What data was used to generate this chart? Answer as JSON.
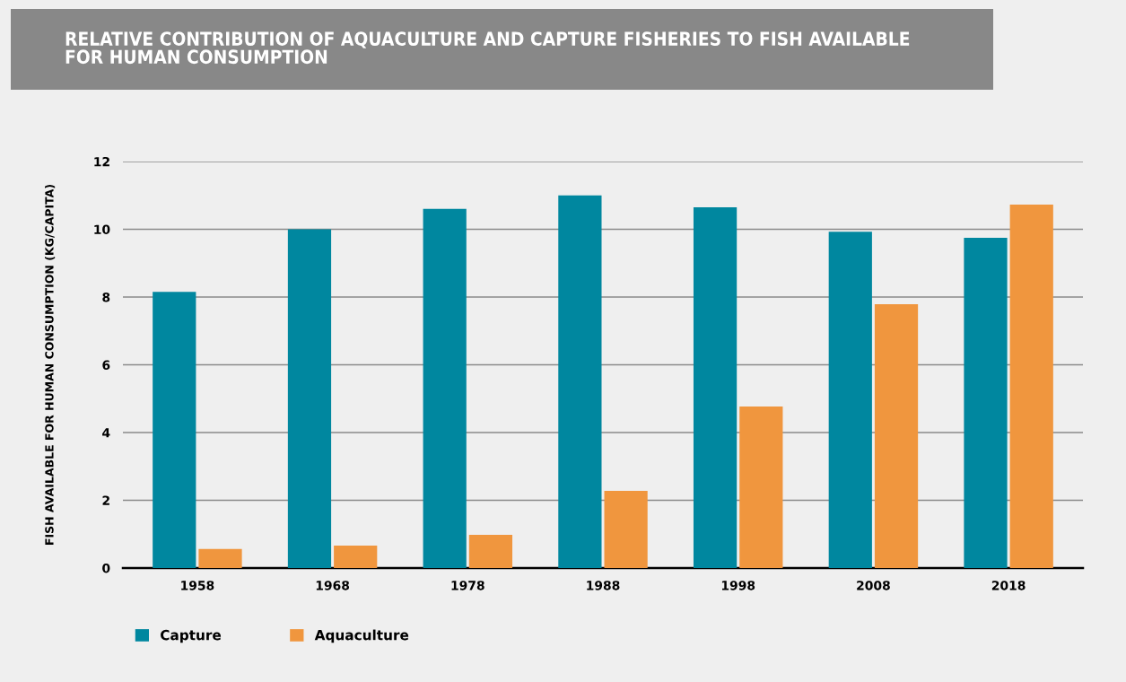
{
  "chart_data": {
    "type": "bar",
    "title": "RELATIVE CONTRIBUTION OF AQUACULTURE AND CAPTURE FISHERIES TO FISH AVAILABLE\nFOR HUMAN CONSUMPTION",
    "ylabel": "FISH AVAILABLE FOR HUMAN CONSUMPTION (KG/CAPITA)",
    "categories": [
      "1958",
      "1968",
      "1978",
      "1988",
      "1998",
      "2008",
      "2018"
    ],
    "series": [
      {
        "name": "Capture",
        "color": "#00879f",
        "values": [
          8.15,
          10.0,
          10.6,
          11.0,
          10.65,
          9.93,
          9.75
        ]
      },
      {
        "name": "Aquaculture",
        "color": "#f0963e",
        "values": [
          0.56,
          0.66,
          0.98,
          2.28,
          4.77,
          7.79,
          10.73
        ]
      }
    ],
    "ylim": [
      0,
      12
    ],
    "yticks": [
      0,
      2,
      4,
      6,
      8,
      10,
      12
    ],
    "grid": "y",
    "legend": "bottom"
  }
}
